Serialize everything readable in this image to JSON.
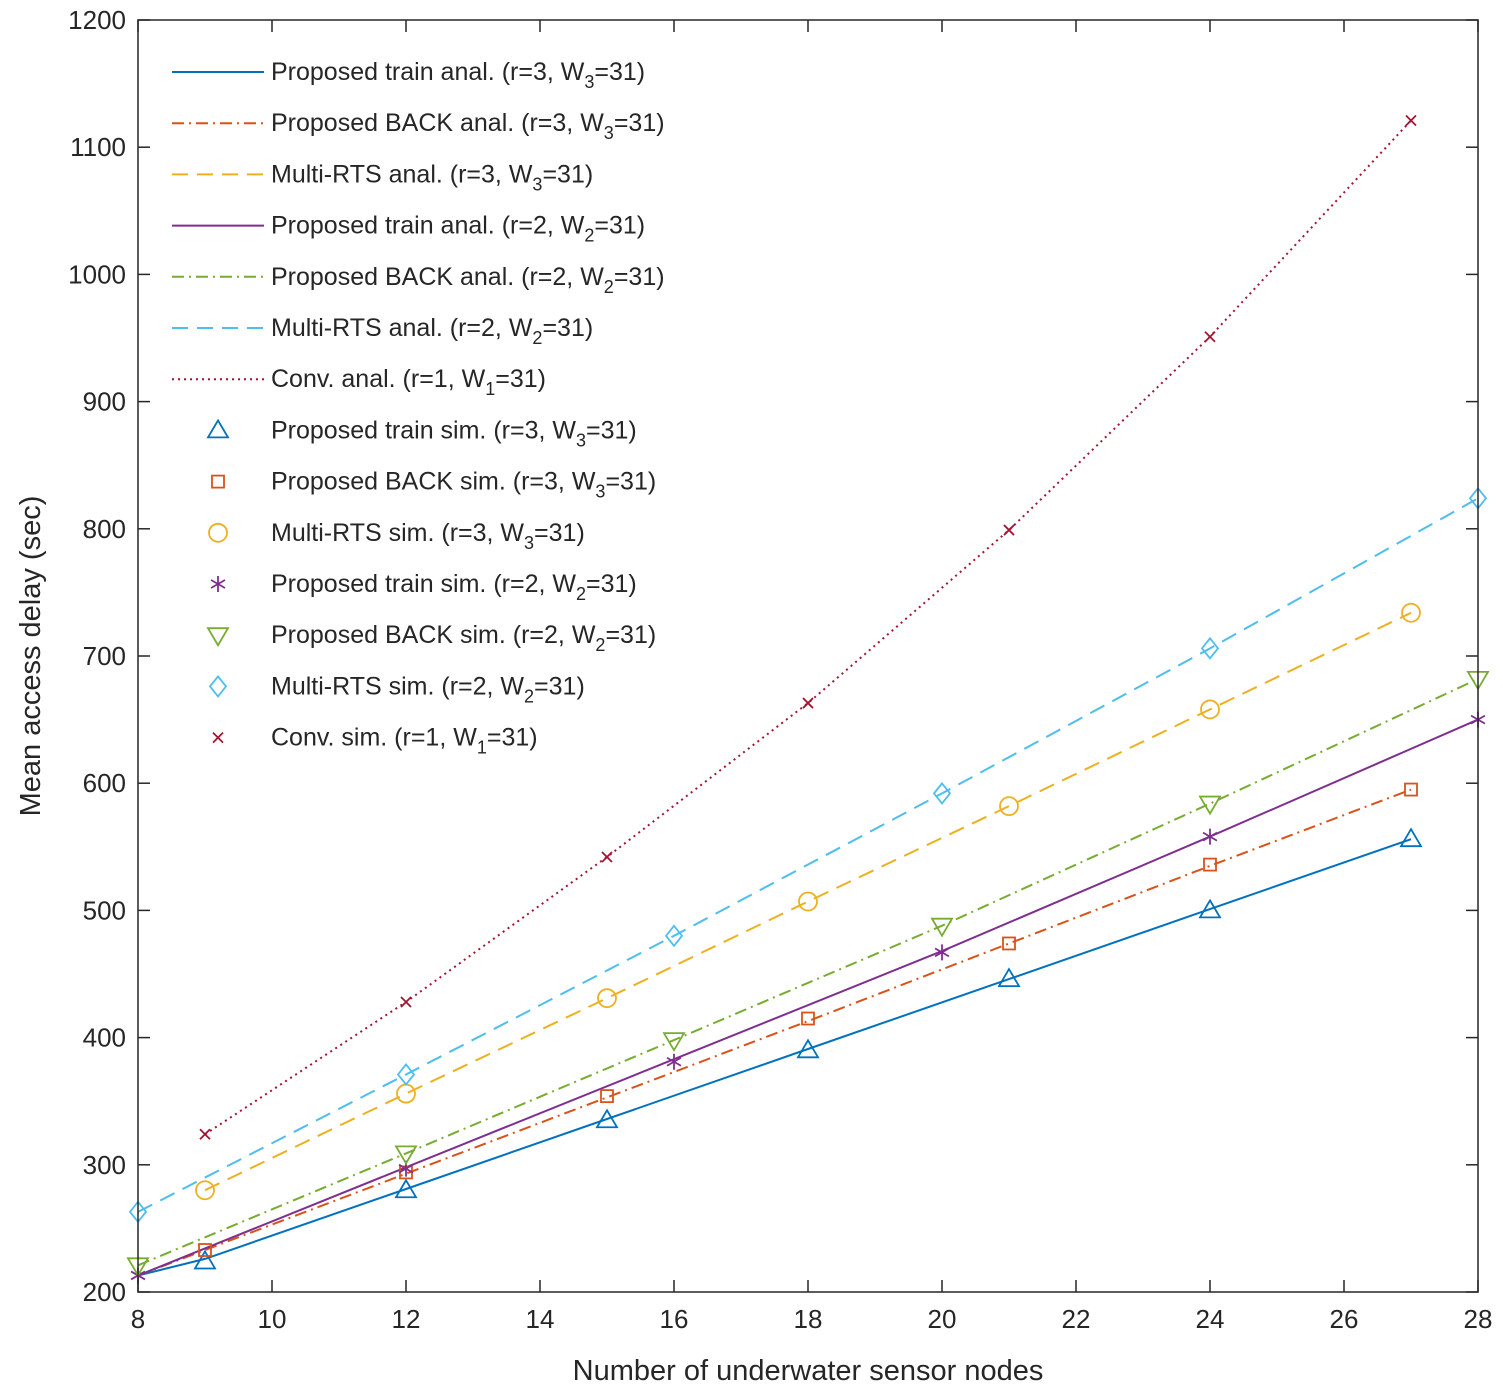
{
  "chart_data": {
    "type": "line",
    "title": "",
    "xlabel": "Number of underwater sensor nodes",
    "ylabel": "Mean access delay (sec)",
    "xlim": [
      8,
      28
    ],
    "ylim": [
      200,
      1200
    ],
    "xticks": [
      8,
      10,
      12,
      14,
      16,
      18,
      20,
      22,
      24,
      26,
      28
    ],
    "yticks": [
      200,
      300,
      400,
      500,
      600,
      700,
      800,
      900,
      1000,
      1100,
      1200
    ],
    "grid": false,
    "legend_position": "top-left",
    "series": [
      {
        "name": "Proposed train anal.",
        "params": "(r=3, W",
        "sub": "3",
        "suffix": "=31)",
        "kind": "line",
        "style": "solid",
        "color": "#0072BD",
        "x": [
          8,
          9,
          12,
          15,
          18,
          21,
          24,
          27
        ],
        "y": [
          213,
          226,
          281,
          336,
          391,
          446,
          501,
          556
        ]
      },
      {
        "name": "Proposed BACK anal.",
        "params": "(r=3, W",
        "sub": "3",
        "suffix": "=31)",
        "kind": "line",
        "style": "dashdot",
        "color": "#D95319",
        "x": [
          8,
          9,
          12,
          15,
          18,
          21,
          24,
          27
        ],
        "y": [
          213,
          233,
          293,
          353,
          413,
          474,
          535,
          595
        ]
      },
      {
        "name": "Multi-RTS anal.",
        "params": "(r=3, W",
        "sub": "3",
        "suffix": "=31)",
        "kind": "line",
        "style": "dashed",
        "color": "#EDB120",
        "x": [
          9,
          12,
          15,
          18,
          21,
          24,
          27
        ],
        "y": [
          280,
          356,
          431,
          507,
          582,
          658,
          734
        ]
      },
      {
        "name": "Proposed train anal.",
        "params": "(r=2, W",
        "sub": "2",
        "suffix": "=31)",
        "kind": "line",
        "style": "solid",
        "color": "#7E2F8E",
        "x": [
          8,
          12,
          16,
          20,
          24,
          28
        ],
        "y": [
          213,
          298,
          383,
          468,
          558,
          650
        ]
      },
      {
        "name": "Proposed BACK anal.",
        "params": "(r=2, W",
        "sub": "2",
        "suffix": "=31)",
        "kind": "line",
        "style": "dashdot",
        "color": "#77AC30",
        "x": [
          8,
          12,
          16,
          20,
          24,
          28
        ],
        "y": [
          221,
          309,
          398,
          488,
          584,
          682
        ]
      },
      {
        "name": "Multi-RTS anal.",
        "params": "(r=2, W",
        "sub": "2",
        "suffix": "=31)",
        "kind": "line",
        "style": "dashed",
        "color": "#4DBEEE",
        "x": [
          8,
          12,
          16,
          20,
          24,
          28
        ],
        "y": [
          263,
          371,
          480,
          592,
          706,
          824
        ]
      },
      {
        "name": "Conv. anal.",
        "params": "(r=1, W",
        "sub": "1",
        "suffix": "=31)",
        "kind": "line",
        "style": "dotted",
        "color": "#A2142F",
        "x": [
          9,
          12,
          15,
          18,
          21,
          24,
          27
        ],
        "y": [
          324,
          428,
          542,
          663,
          799,
          951,
          1121
        ]
      },
      {
        "name": "Proposed train sim.",
        "params": "(r=3, W",
        "sub": "3",
        "suffix": "=31)",
        "kind": "marker",
        "marker": "triangle-up",
        "color": "#0072BD",
        "x": [
          9,
          12,
          15,
          18,
          21,
          24,
          27
        ],
        "y": [
          224,
          280,
          335,
          390,
          446,
          500,
          556
        ]
      },
      {
        "name": "Proposed BACK sim.",
        "params": "(r=3, W",
        "sub": "3",
        "suffix": "=31)",
        "kind": "marker",
        "marker": "square",
        "color": "#D95319",
        "x": [
          9,
          12,
          15,
          18,
          21,
          24,
          27
        ],
        "y": [
          233,
          294,
          354,
          415,
          474,
          536,
          595
        ]
      },
      {
        "name": "Multi-RTS sim.",
        "params": "(r=3, W",
        "sub": "3",
        "suffix": "=31)",
        "kind": "marker",
        "marker": "circle",
        "color": "#EDB120",
        "x": [
          9,
          12,
          15,
          18,
          21,
          24,
          27
        ],
        "y": [
          280,
          356,
          431,
          507,
          582,
          658,
          734
        ]
      },
      {
        "name": "Proposed train sim.",
        "params": "(r=2, W",
        "sub": "2",
        "suffix": "=31)",
        "kind": "marker",
        "marker": "asterisk",
        "color": "#7E2F8E",
        "x": [
          8,
          12,
          16,
          20,
          24,
          28
        ],
        "y": [
          213,
          297,
          381,
          467,
          558,
          650
        ]
      },
      {
        "name": "Proposed BACK sim.",
        "params": "(r=2, W",
        "sub": "2",
        "suffix": "=31)",
        "kind": "marker",
        "marker": "triangle-down",
        "color": "#77AC30",
        "x": [
          8,
          12,
          16,
          20,
          24,
          28
        ],
        "y": [
          221,
          309,
          398,
          488,
          584,
          682
        ]
      },
      {
        "name": "Multi-RTS sim.",
        "params": "(r=2, W",
        "sub": "2",
        "suffix": "=31)",
        "kind": "marker",
        "marker": "diamond",
        "color": "#4DBEEE",
        "x": [
          8,
          12,
          16,
          20,
          24,
          28
        ],
        "y": [
          263,
          371,
          480,
          592,
          706,
          824
        ]
      },
      {
        "name": "Conv. sim.",
        "params": "(r=1, W",
        "sub": "1",
        "suffix": "=31)",
        "kind": "marker",
        "marker": "x",
        "color": "#A2142F",
        "x": [
          9,
          12,
          15,
          18,
          21,
          24,
          27
        ],
        "y": [
          324,
          428,
          542,
          663,
          799,
          951,
          1121
        ]
      }
    ]
  }
}
